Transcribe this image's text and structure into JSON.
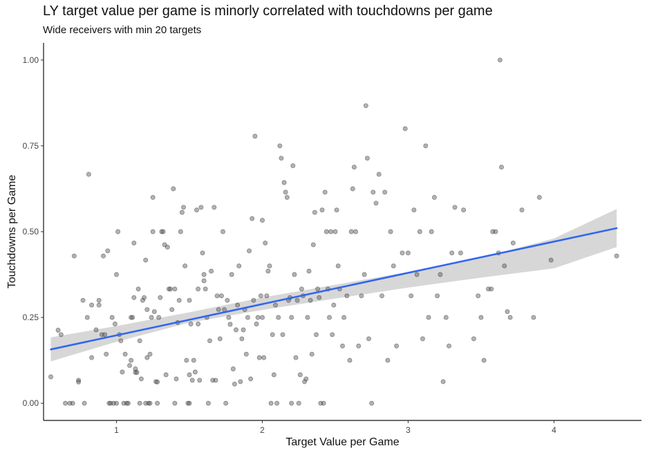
{
  "title": "LY target value per game is minorly correlated with touchdowns per game",
  "subtitle": "Wide receivers with min 20 targets",
  "chart_data": {
    "type": "scatter",
    "title": "LY target value per game is minorly correlated with touchdowns per game",
    "subtitle": "Wide receivers with min 20 targets",
    "xlabel": "Target Value per Game",
    "ylabel": "Touchdowns per Game",
    "xlim": [
      0.5,
      4.6
    ],
    "ylim": [
      -0.05,
      1.05
    ],
    "x_ticks": [
      1,
      2,
      3,
      4
    ],
    "x_tick_labels": [
      "1",
      "2",
      "3",
      "4"
    ],
    "y_ticks": [
      0,
      0.25,
      0.5,
      0.75,
      1.0
    ],
    "y_tick_labels": [
      "0.00",
      "0.25",
      "0.50",
      "0.75",
      "1.00"
    ],
    "grid": false,
    "point_color": "#555555",
    "line_color": "#3366ee",
    "band_color": "#d3d3d3",
    "regression": {
      "x": [
        0.55,
        4.43
      ],
      "y": [
        0.157,
        0.51
      ],
      "band_x": [
        0.55,
        1.0,
        1.5,
        2.0,
        2.5,
        3.0,
        3.5,
        4.0,
        4.43
      ],
      "band_lower": [
        0.122,
        0.179,
        0.235,
        0.272,
        0.305,
        0.337,
        0.366,
        0.393,
        0.455
      ],
      "band_upper": [
        0.192,
        0.225,
        0.265,
        0.308,
        0.345,
        0.383,
        0.425,
        0.48,
        0.566
      ]
    },
    "points": [
      {
        "x": 0.55,
        "y": 0.077
      },
      {
        "x": 0.6,
        "y": 0.213
      },
      {
        "x": 0.62,
        "y": 0.2
      },
      {
        "x": 0.65,
        "y": 0.0
      },
      {
        "x": 0.68,
        "y": 0.0
      },
      {
        "x": 0.7,
        "y": 0.0
      },
      {
        "x": 0.71,
        "y": 0.429
      },
      {
        "x": 0.74,
        "y": 0.067
      },
      {
        "x": 0.74,
        "y": 0.062
      },
      {
        "x": 0.77,
        "y": 0.3
      },
      {
        "x": 0.78,
        "y": 0.0
      },
      {
        "x": 0.8,
        "y": 0.25
      },
      {
        "x": 0.81,
        "y": 0.667
      },
      {
        "x": 0.83,
        "y": 0.133
      },
      {
        "x": 0.83,
        "y": 0.286
      },
      {
        "x": 0.86,
        "y": 0.214
      },
      {
        "x": 0.88,
        "y": 0.286
      },
      {
        "x": 0.88,
        "y": 0.3
      },
      {
        "x": 0.9,
        "y": 0.2
      },
      {
        "x": 0.91,
        "y": 0.429
      },
      {
        "x": 0.92,
        "y": 0.2
      },
      {
        "x": 0.93,
        "y": 0.143
      },
      {
        "x": 0.94,
        "y": 0.444
      },
      {
        "x": 0.95,
        "y": 0.0
      },
      {
        "x": 0.96,
        "y": 0.0
      },
      {
        "x": 0.97,
        "y": 0.25
      },
      {
        "x": 0.98,
        "y": 0.0
      },
      {
        "x": 0.99,
        "y": 0.231
      },
      {
        "x": 1.0,
        "y": 0.0
      },
      {
        "x": 1.0,
        "y": 0.375
      },
      {
        "x": 1.01,
        "y": 0.5
      },
      {
        "x": 1.02,
        "y": 0.2
      },
      {
        "x": 1.03,
        "y": 0.182
      },
      {
        "x": 1.04,
        "y": 0.091
      },
      {
        "x": 1.05,
        "y": 0.0
      },
      {
        "x": 1.06,
        "y": 0.143
      },
      {
        "x": 1.07,
        "y": 0.0
      },
      {
        "x": 1.08,
        "y": 0.0
      },
      {
        "x": 1.09,
        "y": 0.11
      },
      {
        "x": 1.1,
        "y": 0.125
      },
      {
        "x": 1.1,
        "y": 0.25
      },
      {
        "x": 1.11,
        "y": 0.25
      },
      {
        "x": 1.12,
        "y": 0.467
      },
      {
        "x": 1.12,
        "y": 0.308
      },
      {
        "x": 1.13,
        "y": 0.1
      },
      {
        "x": 1.13,
        "y": 0.09
      },
      {
        "x": 1.14,
        "y": 0.09
      },
      {
        "x": 1.15,
        "y": 0.333
      },
      {
        "x": 1.16,
        "y": 0.0
      },
      {
        "x": 1.16,
        "y": 0.182
      },
      {
        "x": 1.17,
        "y": 0.071
      },
      {
        "x": 1.18,
        "y": 0.3
      },
      {
        "x": 1.19,
        "y": 0.308
      },
      {
        "x": 1.2,
        "y": 0.0
      },
      {
        "x": 1.2,
        "y": 0.417
      },
      {
        "x": 1.21,
        "y": 0.273
      },
      {
        "x": 1.21,
        "y": 0.133
      },
      {
        "x": 1.22,
        "y": 0.0
      },
      {
        "x": 1.23,
        "y": 0.143
      },
      {
        "x": 1.23,
        "y": 0.0
      },
      {
        "x": 1.24,
        "y": 0.25
      },
      {
        "x": 1.25,
        "y": 0.6
      },
      {
        "x": 1.25,
        "y": 0.5
      },
      {
        "x": 1.26,
        "y": 0.267
      },
      {
        "x": 1.27,
        "y": 0.063
      },
      {
        "x": 1.28,
        "y": 0.062
      },
      {
        "x": 1.28,
        "y": 0.0
      },
      {
        "x": 1.29,
        "y": 0.25
      },
      {
        "x": 1.3,
        "y": 0.308
      },
      {
        "x": 1.31,
        "y": 0.5
      },
      {
        "x": 1.32,
        "y": 0.5
      },
      {
        "x": 1.33,
        "y": 0.462
      },
      {
        "x": 1.34,
        "y": 0.083
      },
      {
        "x": 1.35,
        "y": 0.455
      },
      {
        "x": 1.36,
        "y": 0.333
      },
      {
        "x": 1.37,
        "y": 0.333
      },
      {
        "x": 1.38,
        "y": 0.273
      },
      {
        "x": 1.39,
        "y": 0.625
      },
      {
        "x": 1.4,
        "y": 0.0
      },
      {
        "x": 1.4,
        "y": 0.333
      },
      {
        "x": 1.41,
        "y": 0.071
      },
      {
        "x": 1.42,
        "y": 0.235
      },
      {
        "x": 1.43,
        "y": 0.3
      },
      {
        "x": 1.44,
        "y": 0.5
      },
      {
        "x": 1.45,
        "y": 0.556
      },
      {
        "x": 1.46,
        "y": 0.571
      },
      {
        "x": 1.47,
        "y": 0.4
      },
      {
        "x": 1.48,
        "y": 0.125
      },
      {
        "x": 1.49,
        "y": 0.0
      },
      {
        "x": 1.5,
        "y": 0.0
      },
      {
        "x": 1.5,
        "y": 0.083
      },
      {
        "x": 1.5,
        "y": 0.3
      },
      {
        "x": 1.51,
        "y": 0.231
      },
      {
        "x": 1.52,
        "y": 0.067
      },
      {
        "x": 1.53,
        "y": 0.125
      },
      {
        "x": 1.54,
        "y": 0.091
      },
      {
        "x": 1.55,
        "y": 0.563
      },
      {
        "x": 1.56,
        "y": 0.333
      },
      {
        "x": 1.56,
        "y": 0.231
      },
      {
        "x": 1.57,
        "y": 0.067
      },
      {
        "x": 1.58,
        "y": 0.571
      },
      {
        "x": 1.59,
        "y": 0.438
      },
      {
        "x": 1.6,
        "y": 0.375
      },
      {
        "x": 1.6,
        "y": 0.357
      },
      {
        "x": 1.61,
        "y": 0.333
      },
      {
        "x": 1.62,
        "y": 0.25
      },
      {
        "x": 1.63,
        "y": 0.0
      },
      {
        "x": 1.64,
        "y": 0.182
      },
      {
        "x": 1.65,
        "y": 0.385
      },
      {
        "x": 1.66,
        "y": 0.067
      },
      {
        "x": 1.67,
        "y": 0.571
      },
      {
        "x": 1.68,
        "y": 0.067
      },
      {
        "x": 1.69,
        "y": 0.313
      },
      {
        "x": 1.7,
        "y": 0.273
      },
      {
        "x": 1.71,
        "y": 0.188
      },
      {
        "x": 1.72,
        "y": 0.313
      },
      {
        "x": 1.73,
        "y": 0.5
      },
      {
        "x": 1.74,
        "y": 0.273
      },
      {
        "x": 1.75,
        "y": 0.0
      },
      {
        "x": 1.76,
        "y": 0.3
      },
      {
        "x": 1.77,
        "y": 0.25
      },
      {
        "x": 1.78,
        "y": 0.23
      },
      {
        "x": 1.79,
        "y": 0.375
      },
      {
        "x": 1.8,
        "y": 0.1
      },
      {
        "x": 1.81,
        "y": 0.056
      },
      {
        "x": 1.82,
        "y": 0.214
      },
      {
        "x": 1.83,
        "y": 0.286
      },
      {
        "x": 1.84,
        "y": 0.4
      },
      {
        "x": 1.85,
        "y": 0.063
      },
      {
        "x": 1.86,
        "y": 0.188
      },
      {
        "x": 1.87,
        "y": 0.214
      },
      {
        "x": 1.88,
        "y": 0.273
      },
      {
        "x": 1.89,
        "y": 0.143
      },
      {
        "x": 1.9,
        "y": 0.25
      },
      {
        "x": 1.91,
        "y": 0.444
      },
      {
        "x": 1.92,
        "y": 0.071
      },
      {
        "x": 1.93,
        "y": 0.538
      },
      {
        "x": 1.94,
        "y": 0.3
      },
      {
        "x": 1.95,
        "y": 0.778
      },
      {
        "x": 1.96,
        "y": 0.231
      },
      {
        "x": 1.97,
        "y": 0.25
      },
      {
        "x": 1.98,
        "y": 0.133
      },
      {
        "x": 1.99,
        "y": 0.313
      },
      {
        "x": 2.0,
        "y": 0.25
      },
      {
        "x": 2.0,
        "y": 0.533
      },
      {
        "x": 2.01,
        "y": 0.133
      },
      {
        "x": 2.02,
        "y": 0.467
      },
      {
        "x": 2.03,
        "y": 0.313
      },
      {
        "x": 2.04,
        "y": 0.385
      },
      {
        "x": 2.05,
        "y": 0.4
      },
      {
        "x": 2.06,
        "y": 0.0
      },
      {
        "x": 2.07,
        "y": 0.2
      },
      {
        "x": 2.08,
        "y": 0.083
      },
      {
        "x": 2.09,
        "y": 0.286
      },
      {
        "x": 2.1,
        "y": 0.0
      },
      {
        "x": 2.11,
        "y": 0.25
      },
      {
        "x": 2.12,
        "y": 0.75
      },
      {
        "x": 2.13,
        "y": 0.714
      },
      {
        "x": 2.14,
        "y": 0.2
      },
      {
        "x": 2.15,
        "y": 0.643
      },
      {
        "x": 2.16,
        "y": 0.615
      },
      {
        "x": 2.17,
        "y": 0.6
      },
      {
        "x": 2.18,
        "y": 0.3
      },
      {
        "x": 2.19,
        "y": 0.308
      },
      {
        "x": 2.2,
        "y": 0.0
      },
      {
        "x": 2.2,
        "y": 0.25
      },
      {
        "x": 2.21,
        "y": 0.692
      },
      {
        "x": 2.22,
        "y": 0.375
      },
      {
        "x": 2.23,
        "y": 0.133
      },
      {
        "x": 2.24,
        "y": 0.3
      },
      {
        "x": 2.25,
        "y": 0.0
      },
      {
        "x": 2.26,
        "y": 0.083
      },
      {
        "x": 2.27,
        "y": 0.333
      },
      {
        "x": 2.28,
        "y": 0.313
      },
      {
        "x": 2.29,
        "y": 0.063
      },
      {
        "x": 2.3,
        "y": 0.071
      },
      {
        "x": 2.31,
        "y": 0.25
      },
      {
        "x": 2.32,
        "y": 0.385
      },
      {
        "x": 2.33,
        "y": 0.3
      },
      {
        "x": 2.34,
        "y": 0.143
      },
      {
        "x": 2.35,
        "y": 0.462
      },
      {
        "x": 2.36,
        "y": 0.556
      },
      {
        "x": 2.37,
        "y": 0.2
      },
      {
        "x": 2.38,
        "y": 0.333
      },
      {
        "x": 2.39,
        "y": 0.308
      },
      {
        "x": 2.4,
        "y": 0.0
      },
      {
        "x": 2.41,
        "y": 0.563
      },
      {
        "x": 2.42,
        "y": 0.0
      },
      {
        "x": 2.43,
        "y": 0.615
      },
      {
        "x": 2.44,
        "y": 0.5
      },
      {
        "x": 2.45,
        "y": 0.333
      },
      {
        "x": 2.46,
        "y": 0.25
      },
      {
        "x": 2.47,
        "y": 0.5
      },
      {
        "x": 2.48,
        "y": 0.2
      },
      {
        "x": 2.49,
        "y": 0.286
      },
      {
        "x": 2.5,
        "y": 0.5
      },
      {
        "x": 2.51,
        "y": 0.563
      },
      {
        "x": 2.52,
        "y": 0.4
      },
      {
        "x": 2.53,
        "y": 0.333
      },
      {
        "x": 2.55,
        "y": 0.167
      },
      {
        "x": 2.56,
        "y": 0.25
      },
      {
        "x": 2.58,
        "y": 0.313
      },
      {
        "x": 2.6,
        "y": 0.125
      },
      {
        "x": 2.61,
        "y": 0.5
      },
      {
        "x": 2.62,
        "y": 0.625
      },
      {
        "x": 2.63,
        "y": 0.688
      },
      {
        "x": 2.64,
        "y": 0.5
      },
      {
        "x": 2.66,
        "y": 0.167
      },
      {
        "x": 2.68,
        "y": 0.313
      },
      {
        "x": 2.7,
        "y": 0.375
      },
      {
        "x": 2.71,
        "y": 0.867
      },
      {
        "x": 2.72,
        "y": 0.714
      },
      {
        "x": 2.73,
        "y": 0.188
      },
      {
        "x": 2.75,
        "y": 0.0
      },
      {
        "x": 2.76,
        "y": 0.615
      },
      {
        "x": 2.78,
        "y": 0.583
      },
      {
        "x": 2.8,
        "y": 0.667
      },
      {
        "x": 2.82,
        "y": 0.313
      },
      {
        "x": 2.84,
        "y": 0.615
      },
      {
        "x": 2.86,
        "y": 0.125
      },
      {
        "x": 2.88,
        "y": 0.5
      },
      {
        "x": 2.9,
        "y": 0.4
      },
      {
        "x": 2.92,
        "y": 0.167
      },
      {
        "x": 2.96,
        "y": 0.438
      },
      {
        "x": 2.98,
        "y": 0.8
      },
      {
        "x": 3.0,
        "y": 0.438
      },
      {
        "x": 3.02,
        "y": 0.313
      },
      {
        "x": 3.04,
        "y": 0.563
      },
      {
        "x": 3.06,
        "y": 0.375
      },
      {
        "x": 3.08,
        "y": 0.5
      },
      {
        "x": 3.1,
        "y": 0.188
      },
      {
        "x": 3.12,
        "y": 0.75
      },
      {
        "x": 3.14,
        "y": 0.25
      },
      {
        "x": 3.16,
        "y": 0.5
      },
      {
        "x": 3.18,
        "y": 0.6
      },
      {
        "x": 3.2,
        "y": 0.313
      },
      {
        "x": 3.22,
        "y": 0.375
      },
      {
        "x": 3.24,
        "y": 0.063
      },
      {
        "x": 3.26,
        "y": 0.25
      },
      {
        "x": 3.28,
        "y": 0.167
      },
      {
        "x": 3.3,
        "y": 0.438
      },
      {
        "x": 3.32,
        "y": 0.571
      },
      {
        "x": 3.36,
        "y": 0.438
      },
      {
        "x": 3.38,
        "y": 0.563
      },
      {
        "x": 3.45,
        "y": 0.188
      },
      {
        "x": 3.48,
        "y": 0.313
      },
      {
        "x": 3.5,
        "y": 0.25
      },
      {
        "x": 3.52,
        "y": 0.125
      },
      {
        "x": 3.55,
        "y": 0.333
      },
      {
        "x": 3.57,
        "y": 0.333
      },
      {
        "x": 3.58,
        "y": 0.5
      },
      {
        "x": 3.6,
        "y": 0.5
      },
      {
        "x": 3.62,
        "y": 0.438
      },
      {
        "x": 3.63,
        "y": 1.0
      },
      {
        "x": 3.64,
        "y": 0.688
      },
      {
        "x": 3.66,
        "y": 0.4
      },
      {
        "x": 3.68,
        "y": 0.267
      },
      {
        "x": 3.7,
        "y": 0.25
      },
      {
        "x": 3.72,
        "y": 0.467
      },
      {
        "x": 3.78,
        "y": 0.563
      },
      {
        "x": 3.86,
        "y": 0.25
      },
      {
        "x": 3.9,
        "y": 0.6
      },
      {
        "x": 3.98,
        "y": 0.417
      },
      {
        "x": 4.43,
        "y": 0.429
      }
    ]
  }
}
